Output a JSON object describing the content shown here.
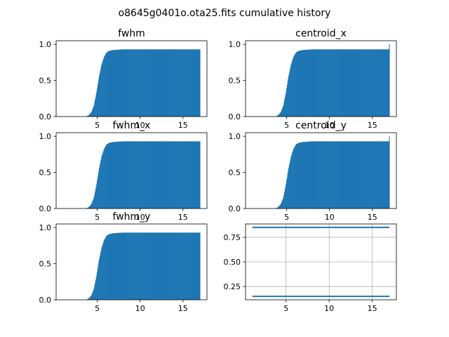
{
  "figure": {
    "title": "o8645g0401o.ota25.fits cumulative history"
  },
  "chart_data": [
    {
      "type": "histogram",
      "title": "fwhm",
      "xlim": [
        0.2,
        17.8
      ],
      "ylim": [
        0,
        1.05
      ],
      "xticks": [
        5,
        10,
        15
      ],
      "yticks": [
        0.0,
        0.5,
        1.0
      ],
      "ytick_labels": [
        "0.0",
        "0.5",
        "1.0"
      ],
      "bin_range": [
        1.1,
        17.0
      ],
      "color": "#1f77b4",
      "cumulative_curve": {
        "x": [
          1.1,
          3.7,
          4.0,
          4.3,
          4.6,
          4.9,
          5.2,
          5.5,
          5.8,
          6.1,
          6.4,
          6.8,
          7.3,
          8.0,
          17.0
        ],
        "y": [
          0.0,
          0.0,
          0.02,
          0.06,
          0.15,
          0.33,
          0.55,
          0.72,
          0.83,
          0.89,
          0.91,
          0.92,
          0.925,
          0.93,
          0.93
        ]
      }
    },
    {
      "type": "histogram",
      "title": "centroid_x",
      "xlim": [
        0.2,
        17.8
      ],
      "ylim": [
        0,
        1.05
      ],
      "xticks": [
        5,
        10,
        15
      ],
      "yticks": [
        0.0,
        0.5,
        1.0
      ],
      "ytick_labels": [
        "0.0",
        "0.5",
        "1.0"
      ],
      "bin_range": [
        1.1,
        17.0
      ],
      "last_bin_value": 1.0,
      "color": "#1f77b4",
      "cumulative_curve": {
        "x": [
          1.1,
          3.7,
          4.0,
          4.3,
          4.6,
          4.9,
          5.2,
          5.5,
          5.8,
          6.1,
          6.4,
          6.8,
          7.3,
          8.0,
          17.0
        ],
        "y": [
          0.0,
          0.0,
          0.02,
          0.06,
          0.15,
          0.33,
          0.55,
          0.72,
          0.83,
          0.89,
          0.91,
          0.92,
          0.925,
          0.93,
          0.93
        ]
      }
    },
    {
      "type": "histogram",
      "title": "fwhm_x",
      "xlim": [
        0.2,
        17.8
      ],
      "ylim": [
        0,
        1.05
      ],
      "xticks": [
        5,
        10,
        15
      ],
      "yticks": [
        0.0,
        0.5,
        1.0
      ],
      "ytick_labels": [
        "0.0",
        "0.5",
        "1.0"
      ],
      "bin_range": [
        1.1,
        17.0
      ],
      "color": "#1f77b4",
      "cumulative_curve": {
        "x": [
          1.1,
          3.7,
          4.0,
          4.3,
          4.6,
          4.9,
          5.2,
          5.5,
          5.8,
          6.1,
          6.4,
          6.8,
          7.3,
          8.0,
          17.0
        ],
        "y": [
          0.0,
          0.0,
          0.02,
          0.06,
          0.15,
          0.33,
          0.55,
          0.72,
          0.83,
          0.89,
          0.91,
          0.92,
          0.925,
          0.93,
          0.93
        ]
      }
    },
    {
      "type": "histogram",
      "title": "centroid_y",
      "xlim": [
        0.2,
        17.8
      ],
      "ylim": [
        0,
        1.05
      ],
      "xticks": [
        5,
        10,
        15
      ],
      "yticks": [
        0.0,
        0.5,
        1.0
      ],
      "ytick_labels": [
        "0.0",
        "0.5",
        "1.0"
      ],
      "bin_range": [
        1.1,
        17.0
      ],
      "last_bin_value": 1.0,
      "color": "#1f77b4",
      "cumulative_curve": {
        "x": [
          1.1,
          3.7,
          4.0,
          4.3,
          4.6,
          4.9,
          5.2,
          5.5,
          5.8,
          6.1,
          6.4,
          6.8,
          7.3,
          8.0,
          17.0
        ],
        "y": [
          0.0,
          0.0,
          0.02,
          0.06,
          0.15,
          0.33,
          0.55,
          0.72,
          0.83,
          0.89,
          0.91,
          0.92,
          0.925,
          0.93,
          0.93
        ]
      }
    },
    {
      "type": "histogram",
      "title": "fwhm_y",
      "xlim": [
        0.2,
        17.8
      ],
      "ylim": [
        0,
        1.05
      ],
      "xticks": [
        5,
        10,
        15
      ],
      "yticks": [
        0.0,
        0.5,
        1.0
      ],
      "ytick_labels": [
        "0.0",
        "0.5",
        "1.0"
      ],
      "bin_range": [
        1.1,
        17.0
      ],
      "color": "#1f77b4",
      "cumulative_curve": {
        "x": [
          1.1,
          3.7,
          4.0,
          4.3,
          4.6,
          4.9,
          5.2,
          5.5,
          5.8,
          6.1,
          6.4,
          6.8,
          7.3,
          8.0,
          17.0
        ],
        "y": [
          0.0,
          0.0,
          0.02,
          0.06,
          0.15,
          0.33,
          0.55,
          0.72,
          0.83,
          0.89,
          0.91,
          0.92,
          0.925,
          0.93,
          0.93
        ]
      }
    },
    {
      "type": "line",
      "title": "",
      "grid": true,
      "xlim": [
        0.3,
        17.8
      ],
      "ylim": [
        0.115,
        0.885
      ],
      "xticks": [
        5,
        10,
        15
      ],
      "yticks": [
        0.25,
        0.5,
        0.75
      ],
      "ytick_labels": [
        "0.25",
        "0.50",
        "0.75"
      ],
      "color": "#1f77b4",
      "series": [
        {
          "x": [
            1.1,
            17.0
          ],
          "y": [
            0.85,
            0.85
          ]
        },
        {
          "x": [
            1.1,
            17.0
          ],
          "y": [
            0.15,
            0.15
          ]
        }
      ]
    }
  ]
}
